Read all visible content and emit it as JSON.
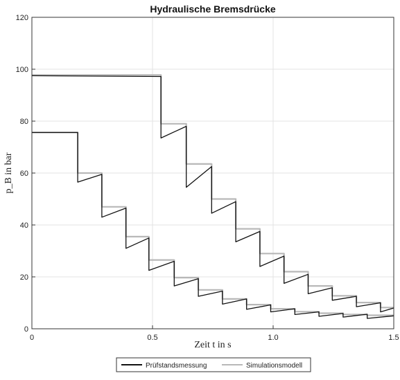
{
  "chart_data": {
    "type": "line",
    "title": "Hydraulische Bremsdrücke",
    "xlabel": "Zeit t in s",
    "ylabel": "p_B in bar",
    "xlim": [
      0,
      1.5
    ],
    "ylim": [
      0,
      120
    ],
    "xticks": [
      0,
      0.5,
      1.0,
      1.5
    ],
    "xtick_labels": [
      "0",
      "0.5",
      "1.0",
      "1.5"
    ],
    "yticks": [
      0,
      20,
      40,
      60,
      80,
      100,
      120
    ],
    "ytick_labels": [
      "0",
      "20",
      "40",
      "60",
      "80",
      "100",
      "120"
    ],
    "grid": true,
    "legend_position": "bottom-center",
    "series": [
      {
        "name": "Prüfstandsmessung",
        "color": "#111111",
        "curves": [
          {
            "label": "",
            "x": [
              0,
              0.19,
              0.19,
              0.29,
              0.29,
              0.39,
              0.39,
              0.485,
              0.485,
              0.59,
              0.59,
              0.69,
              0.69,
              0.79,
              0.79,
              0.89,
              0.89,
              0.99,
              0.99,
              1.09,
              1.09,
              1.19,
              1.19,
              1.29,
              1.29,
              1.39,
              1.39,
              1.5
            ],
            "y": [
              75.6,
              75.6,
              56.5,
              59.5,
              43.0,
              46.5,
              31.0,
              35.0,
              22.5,
              26.0,
              16.5,
              19.3,
              12.5,
              14.5,
              9.5,
              11.5,
              7.5,
              9.2,
              6.5,
              7.7,
              5.5,
              6.5,
              4.8,
              5.9,
              4.5,
              5.6,
              4.0,
              5.0
            ]
          },
          {
            "label": "",
            "x": [
              0,
              0.535,
              0.535,
              0.64,
              0.64,
              0.745,
              0.745,
              0.845,
              0.845,
              0.945,
              0.945,
              1.045,
              1.045,
              1.145,
              1.145,
              1.245,
              1.245,
              1.345,
              1.345,
              1.445,
              1.445,
              1.5
            ],
            "y": [
              97.5,
              97.2,
              73.5,
              78.0,
              54.5,
              62.5,
              44.5,
              49.0,
              33.5,
              37.5,
              24.0,
              28.0,
              17.5,
              21.0,
              13.5,
              15.8,
              11.0,
              12.5,
              8.5,
              10.0,
              6.5,
              8.0
            ]
          }
        ]
      },
      {
        "name": "Simulationsmodell",
        "color": "#b8b8b8",
        "curves": [
          {
            "label": "",
            "x": [
              0,
              0.19,
              0.19,
              0.29,
              0.29,
              0.39,
              0.39,
              0.485,
              0.485,
              0.59,
              0.59,
              0.69,
              0.69,
              0.79,
              0.79,
              0.89,
              0.89,
              0.99,
              0.99,
              1.09,
              1.09,
              1.19,
              1.19,
              1.29,
              1.29,
              1.39,
              1.39,
              1.5
            ],
            "y": [
              75.7,
              75.7,
              60.0,
              60.0,
              47.0,
              47.0,
              35.5,
              35.5,
              26.5,
              26.5,
              19.7,
              19.7,
              15.0,
              15.0,
              11.5,
              11.5,
              9.3,
              9.3,
              7.7,
              7.7,
              6.6,
              6.6,
              6.0,
              6.0,
              5.5,
              5.5,
              5.2,
              5.2
            ]
          },
          {
            "label": "",
            "x": [
              0,
              0.535,
              0.535,
              0.64,
              0.64,
              0.745,
              0.745,
              0.845,
              0.845,
              0.945,
              0.945,
              1.045,
              1.045,
              1.145,
              1.145,
              1.245,
              1.245,
              1.345,
              1.345,
              1.445,
              1.445,
              1.5
            ],
            "y": [
              97.8,
              97.8,
              79.0,
              79.0,
              63.5,
              63.5,
              50.0,
              50.0,
              38.5,
              38.5,
              29.0,
              29.0,
              22.0,
              22.0,
              16.5,
              16.5,
              12.7,
              12.7,
              10.1,
              10.1,
              8.2,
              8.2
            ]
          }
        ]
      }
    ]
  }
}
